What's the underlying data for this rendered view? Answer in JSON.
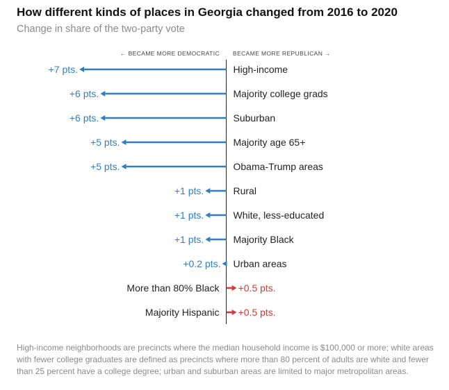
{
  "title": "How different kinds of places in Georgia changed from 2016 to 2020",
  "subtitle": "Change in share of the two-party vote",
  "note": "High-income neighborhoods are precincts where the median household income is $100,000 or more; white areas with fewer college graduates are defined as precincts where more than 80 percent of adults are white and fewer than 25 percent have a college degree; urban and suburban areas are limited to major metropolitan areas.",
  "colors": {
    "democratic": "#2f7fc0",
    "republican": "#d03a3a",
    "axis": "#222222"
  },
  "chart_data": {
    "type": "bar",
    "orientation": "horizontal",
    "left_header": "← BECAME MORE DEMOCRATIC",
    "right_header": "BECAME MORE REPUBLICAN →",
    "unit_suffix": " pts.",
    "value_prefix": "+",
    "xlim": [
      -7,
      7
    ],
    "categories": [
      "High-income",
      "Majority college grads",
      "Suburban",
      "Majority age 65+",
      "Obama-Trump areas",
      "Rural",
      "White, less-educated",
      "Majority Black",
      "Urban areas",
      "More than 80% Black",
      "Majority Hispanic"
    ],
    "values": [
      -7,
      -6,
      -6,
      -5,
      -5,
      -1,
      -1,
      -1,
      -0.2,
      0.5,
      0.5
    ]
  }
}
